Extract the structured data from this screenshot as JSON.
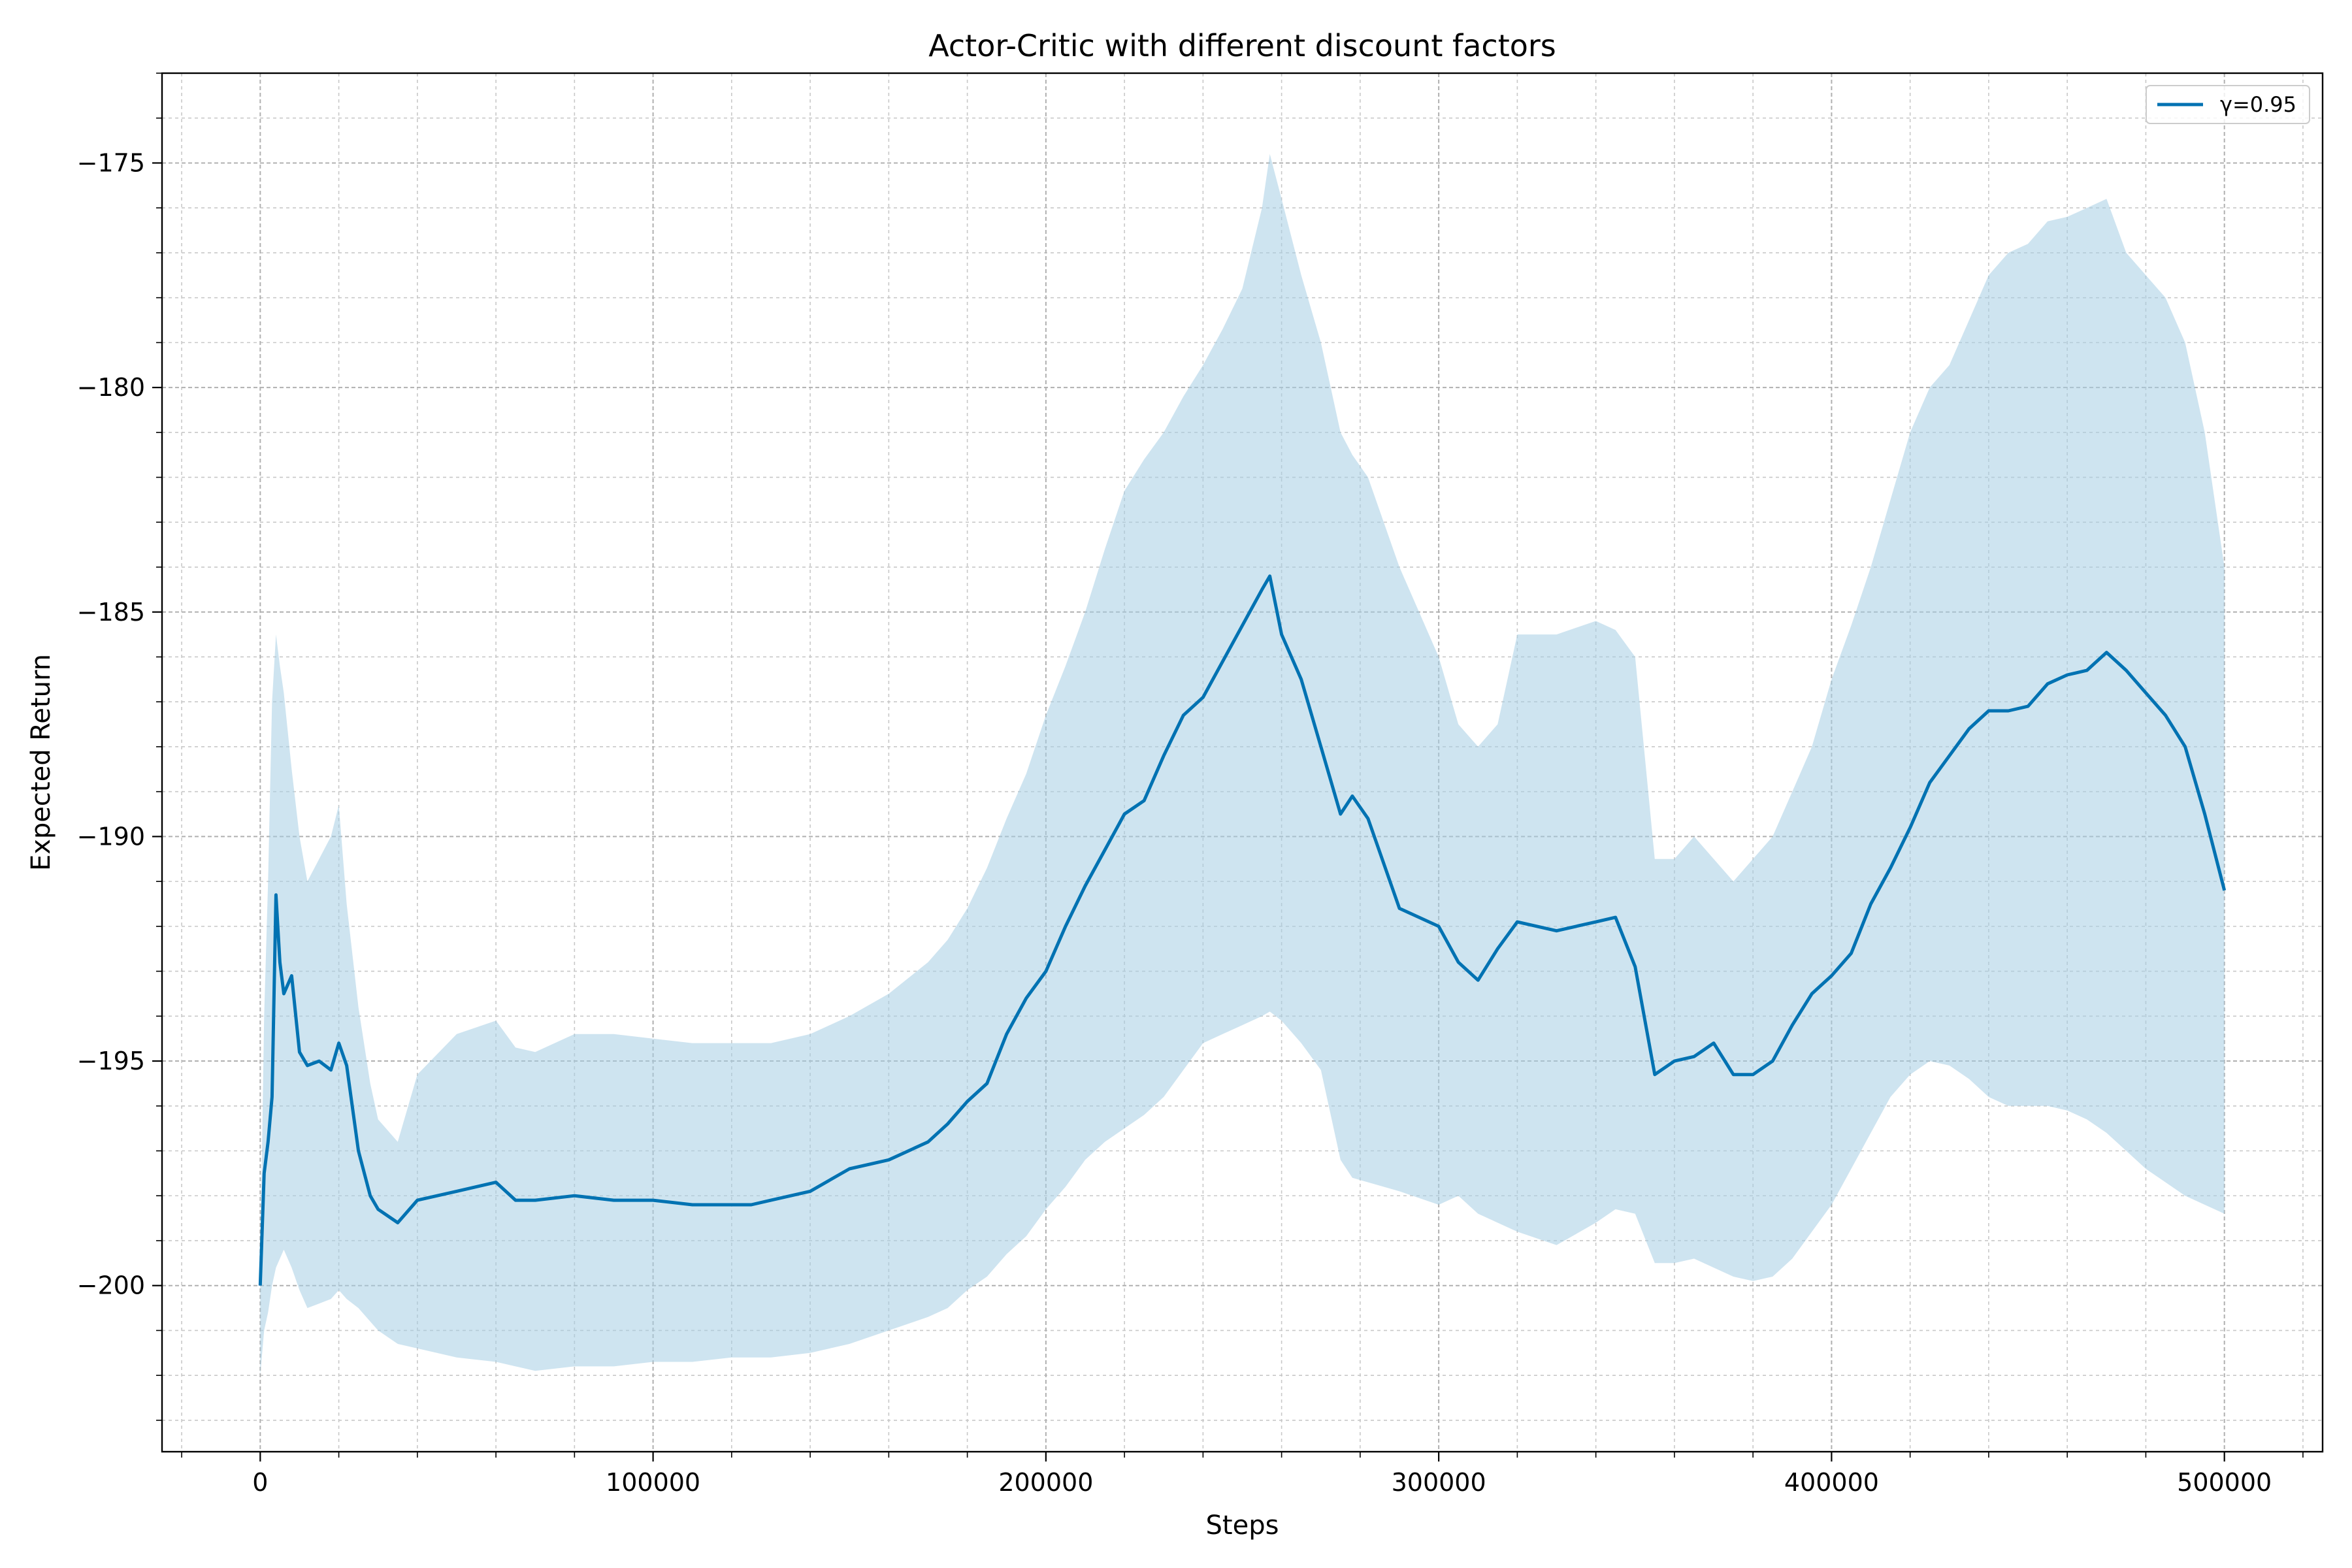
{
  "chart_data": {
    "type": "line",
    "title": "Actor-Critic with different discount factors",
    "xlabel": "Steps",
    "ylabel": "Expected Return",
    "xlim": [
      -25000,
      525000
    ],
    "ylim": [
      -203.7,
      -173.0
    ],
    "xticks": [
      0,
      100000,
      200000,
      300000,
      400000,
      500000
    ],
    "yticks": [
      -200,
      -195,
      -190,
      -185,
      -180,
      -175
    ],
    "xtick_labels": [
      "0",
      "100000",
      "200000",
      "300000",
      "400000",
      "500000"
    ],
    "ytick_labels": [
      "−200",
      "−195",
      "−190",
      "−185",
      "−180",
      "−175"
    ],
    "grid": true,
    "minor_grid": true,
    "legend_position": "top-right",
    "colors": {
      "line": "#0072b2",
      "band": "#a6cde3"
    },
    "series": [
      {
        "name": "γ=0.95",
        "x": [
          0,
          1000,
          2000,
          3000,
          4000,
          5000,
          6000,
          8000,
          10000,
          12000,
          15000,
          18000,
          20000,
          22000,
          25000,
          28000,
          30000,
          35000,
          40000,
          50000,
          60000,
          65000,
          70000,
          80000,
          90000,
          100000,
          110000,
          120000,
          125000,
          130000,
          140000,
          150000,
          160000,
          170000,
          175000,
          180000,
          185000,
          190000,
          195000,
          200000,
          205000,
          210000,
          215000,
          220000,
          225000,
          230000,
          235000,
          240000,
          245000,
          250000,
          255000,
          257000,
          260000,
          265000,
          270000,
          275000,
          278000,
          282000,
          290000,
          300000,
          305000,
          310000,
          315000,
          320000,
          330000,
          340000,
          345000,
          350000,
          355000,
          360000,
          365000,
          370000,
          375000,
          380000,
          385000,
          390000,
          395000,
          400000,
          405000,
          410000,
          415000,
          420000,
          425000,
          430000,
          435000,
          440000,
          445000,
          450000,
          455000,
          460000,
          465000,
          470000,
          475000,
          480000,
          485000,
          490000,
          495000,
          500000
        ],
        "mean": [
          -200.0,
          -197.5,
          -196.8,
          -195.8,
          -191.3,
          -192.8,
          -193.5,
          -193.1,
          -194.8,
          -195.1,
          -195.0,
          -195.2,
          -194.6,
          -195.1,
          -197.0,
          -198.0,
          -198.3,
          -198.6,
          -198.1,
          -197.9,
          -197.7,
          -198.1,
          -198.1,
          -198.0,
          -198.1,
          -198.1,
          -198.2,
          -198.2,
          -198.2,
          -198.1,
          -197.9,
          -197.4,
          -197.2,
          -196.8,
          -196.4,
          -195.9,
          -195.5,
          -194.4,
          -193.6,
          -193.0,
          -192.0,
          -191.1,
          -190.3,
          -189.5,
          -189.2,
          -188.2,
          -187.3,
          -186.9,
          -186.1,
          -185.3,
          -184.5,
          -184.2,
          -185.5,
          -186.5,
          -188.0,
          -189.5,
          -189.1,
          -189.6,
          -191.6,
          -192.0,
          -192.8,
          -193.2,
          -192.5,
          -191.9,
          -192.1,
          -191.9,
          -191.8,
          -192.9,
          -195.3,
          -195.0,
          -194.9,
          -194.6,
          -195.3,
          -195.3,
          -195.0,
          -194.2,
          -193.5,
          -193.1,
          -192.6,
          -191.5,
          -190.7,
          -189.8,
          -188.8,
          -188.2,
          -187.6,
          -187.2,
          -187.2,
          -187.1,
          -186.6,
          -186.4,
          -186.3,
          -185.9,
          -186.3,
          -186.8,
          -187.3,
          -188.0,
          -189.5,
          -191.2
        ],
        "upper": [
          -199.5,
          -194.0,
          -191.0,
          -187.0,
          -185.5,
          -186.2,
          -186.8,
          -188.5,
          -190.0,
          -191.0,
          -190.5,
          -190.0,
          -189.3,
          -191.5,
          -193.8,
          -195.5,
          -196.3,
          -196.8,
          -195.3,
          -194.4,
          -194.1,
          -194.7,
          -194.8,
          -194.4,
          -194.4,
          -194.5,
          -194.6,
          -194.6,
          -194.6,
          -194.6,
          -194.4,
          -194.0,
          -193.5,
          -192.8,
          -192.3,
          -191.6,
          -190.7,
          -189.6,
          -188.6,
          -187.3,
          -186.2,
          -185.0,
          -183.6,
          -182.3,
          -181.6,
          -181.0,
          -180.2,
          -179.5,
          -178.7,
          -177.8,
          -176.0,
          -174.8,
          -175.8,
          -177.5,
          -179.0,
          -181.0,
          -181.5,
          -182.0,
          -184.0,
          -186.0,
          -187.5,
          -188.0,
          -187.5,
          -185.5,
          -185.5,
          -185.2,
          -185.4,
          -186.0,
          -190.5,
          -190.5,
          -190.0,
          -190.5,
          -191.0,
          -190.5,
          -190.0,
          -189.0,
          -188.0,
          -186.5,
          -185.3,
          -184.0,
          -182.5,
          -181.0,
          -180.0,
          -179.5,
          -178.5,
          -177.5,
          -177.0,
          -176.8,
          -176.3,
          -176.2,
          -176.0,
          -175.8,
          -177.0,
          -177.5,
          -178.0,
          -179.0,
          -181.0,
          -184.0
        ],
        "lower": [
          -202.0,
          -201.0,
          -200.6,
          -200.0,
          -199.6,
          -199.4,
          -199.2,
          -199.6,
          -200.1,
          -200.5,
          -200.4,
          -200.3,
          -200.1,
          -200.3,
          -200.5,
          -200.8,
          -201.0,
          -201.3,
          -201.4,
          -201.6,
          -201.7,
          -201.8,
          -201.9,
          -201.8,
          -201.8,
          -201.7,
          -201.7,
          -201.6,
          -201.6,
          -201.6,
          -201.5,
          -201.3,
          -201.0,
          -200.7,
          -200.5,
          -200.1,
          -199.8,
          -199.3,
          -198.9,
          -198.3,
          -197.8,
          -197.2,
          -196.8,
          -196.5,
          -196.2,
          -195.8,
          -195.2,
          -194.6,
          -194.4,
          -194.2,
          -194.0,
          -193.9,
          -194.1,
          -194.6,
          -195.2,
          -197.2,
          -197.6,
          -197.7,
          -197.9,
          -198.2,
          -198.0,
          -198.4,
          -198.6,
          -198.8,
          -199.1,
          -198.6,
          -198.3,
          -198.4,
          -199.5,
          -199.5,
          -199.4,
          -199.6,
          -199.8,
          -199.9,
          -199.8,
          -199.4,
          -198.8,
          -198.2,
          -197.4,
          -196.6,
          -195.8,
          -195.3,
          -195.0,
          -195.1,
          -195.4,
          -195.8,
          -196.0,
          -196.0,
          -196.0,
          -196.1,
          -196.3,
          -196.6,
          -197.0,
          -197.4,
          -197.7,
          -198.0,
          -198.2,
          -198.4
        ]
      }
    ]
  }
}
